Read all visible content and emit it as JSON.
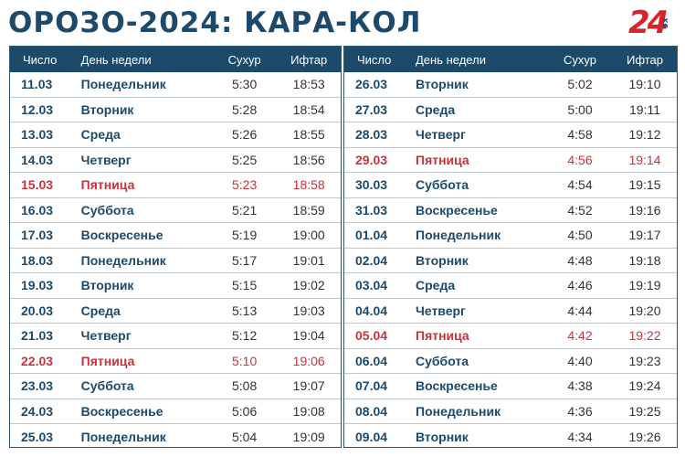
{
  "title": "ОРОЗО-2024: КАРА-КОЛ",
  "logo": {
    "number": "24",
    "suffix": "KG"
  },
  "headers": {
    "date": "Число",
    "day": "День недели",
    "suhur": "Сухур",
    "iftar": "Ифтар"
  },
  "colors": {
    "header_bg": "#1d4a6b",
    "text_main": "#1d4a6b",
    "friday": "#c8323d",
    "logo": "#d8232a"
  },
  "left_rows": [
    {
      "date": "11.03",
      "day": "Понедельник",
      "suhur": "5:30",
      "iftar": "18:53",
      "friday": false
    },
    {
      "date": "12.03",
      "day": "Вторник",
      "suhur": "5:28",
      "iftar": "18:54",
      "friday": false
    },
    {
      "date": "13.03",
      "day": "Среда",
      "suhur": "5:26",
      "iftar": "18:55",
      "friday": false
    },
    {
      "date": "14.03",
      "day": "Четверг",
      "suhur": "5:25",
      "iftar": "18:56",
      "friday": false
    },
    {
      "date": "15.03",
      "day": "Пятница",
      "suhur": "5:23",
      "iftar": "18:58",
      "friday": true
    },
    {
      "date": "16.03",
      "day": "Суббота",
      "suhur": "5:21",
      "iftar": "18:59",
      "friday": false
    },
    {
      "date": "17.03",
      "day": "Воскресенье",
      "suhur": "5:19",
      "iftar": "19:00",
      "friday": false
    },
    {
      "date": "18.03",
      "day": "Понедельник",
      "suhur": "5:17",
      "iftar": "19:01",
      "friday": false
    },
    {
      "date": "19.03",
      "day": "Вторник",
      "suhur": "5:15",
      "iftar": "19:02",
      "friday": false
    },
    {
      "date": "20.03",
      "day": "Среда",
      "suhur": "5:13",
      "iftar": "19:03",
      "friday": false
    },
    {
      "date": "21.03",
      "day": "Четверг",
      "suhur": "5:12",
      "iftar": "19:04",
      "friday": false
    },
    {
      "date": "22.03",
      "day": "Пятница",
      "suhur": "5:10",
      "iftar": "19:06",
      "friday": true
    },
    {
      "date": "23.03",
      "day": "Суббота",
      "suhur": "5:08",
      "iftar": "19:07",
      "friday": false
    },
    {
      "date": "24.03",
      "day": "Воскресенье",
      "suhur": "5:06",
      "iftar": "19:08",
      "friday": false
    },
    {
      "date": "25.03",
      "day": "Понедельник",
      "suhur": "5:04",
      "iftar": "19:09",
      "friday": false
    }
  ],
  "right_rows": [
    {
      "date": "26.03",
      "day": "Вторник",
      "suhur": "5:02",
      "iftar": "19:10",
      "friday": false
    },
    {
      "date": "27.03",
      "day": "Среда",
      "suhur": "5:00",
      "iftar": "19:11",
      "friday": false
    },
    {
      "date": "28.03",
      "day": "Четверг",
      "suhur": "4:58",
      "iftar": "19:12",
      "friday": false
    },
    {
      "date": "29.03",
      "day": "Пятница",
      "suhur": "4:56",
      "iftar": "19:14",
      "friday": true
    },
    {
      "date": "30.03",
      "day": "Суббота",
      "suhur": "4:54",
      "iftar": "19:15",
      "friday": false
    },
    {
      "date": "31.03",
      "day": "Воскресенье",
      "suhur": "4:52",
      "iftar": "19:16",
      "friday": false
    },
    {
      "date": "01.04",
      "day": "Понедельник",
      "suhur": "4:50",
      "iftar": "19:17",
      "friday": false
    },
    {
      "date": "02.04",
      "day": "Вторник",
      "suhur": "4:48",
      "iftar": "19:18",
      "friday": false
    },
    {
      "date": "03.04",
      "day": "Среда",
      "suhur": "4:46",
      "iftar": "19:19",
      "friday": false
    },
    {
      "date": "04.04",
      "day": "Четверг",
      "suhur": "4:44",
      "iftar": "19:20",
      "friday": false
    },
    {
      "date": "05.04",
      "day": "Пятница",
      "suhur": "4:42",
      "iftar": "19:22",
      "friday": true
    },
    {
      "date": "06.04",
      "day": "Суббота",
      "suhur": "4:40",
      "iftar": "19:23",
      "friday": false
    },
    {
      "date": "07.04",
      "day": "Воскресенье",
      "suhur": "4:38",
      "iftar": "19:24",
      "friday": false
    },
    {
      "date": "08.04",
      "day": "Понедельник",
      "suhur": "4:36",
      "iftar": "19:25",
      "friday": false
    },
    {
      "date": "09.04",
      "day": "Вторник",
      "suhur": "4:34",
      "iftar": "19:26",
      "friday": false
    }
  ]
}
